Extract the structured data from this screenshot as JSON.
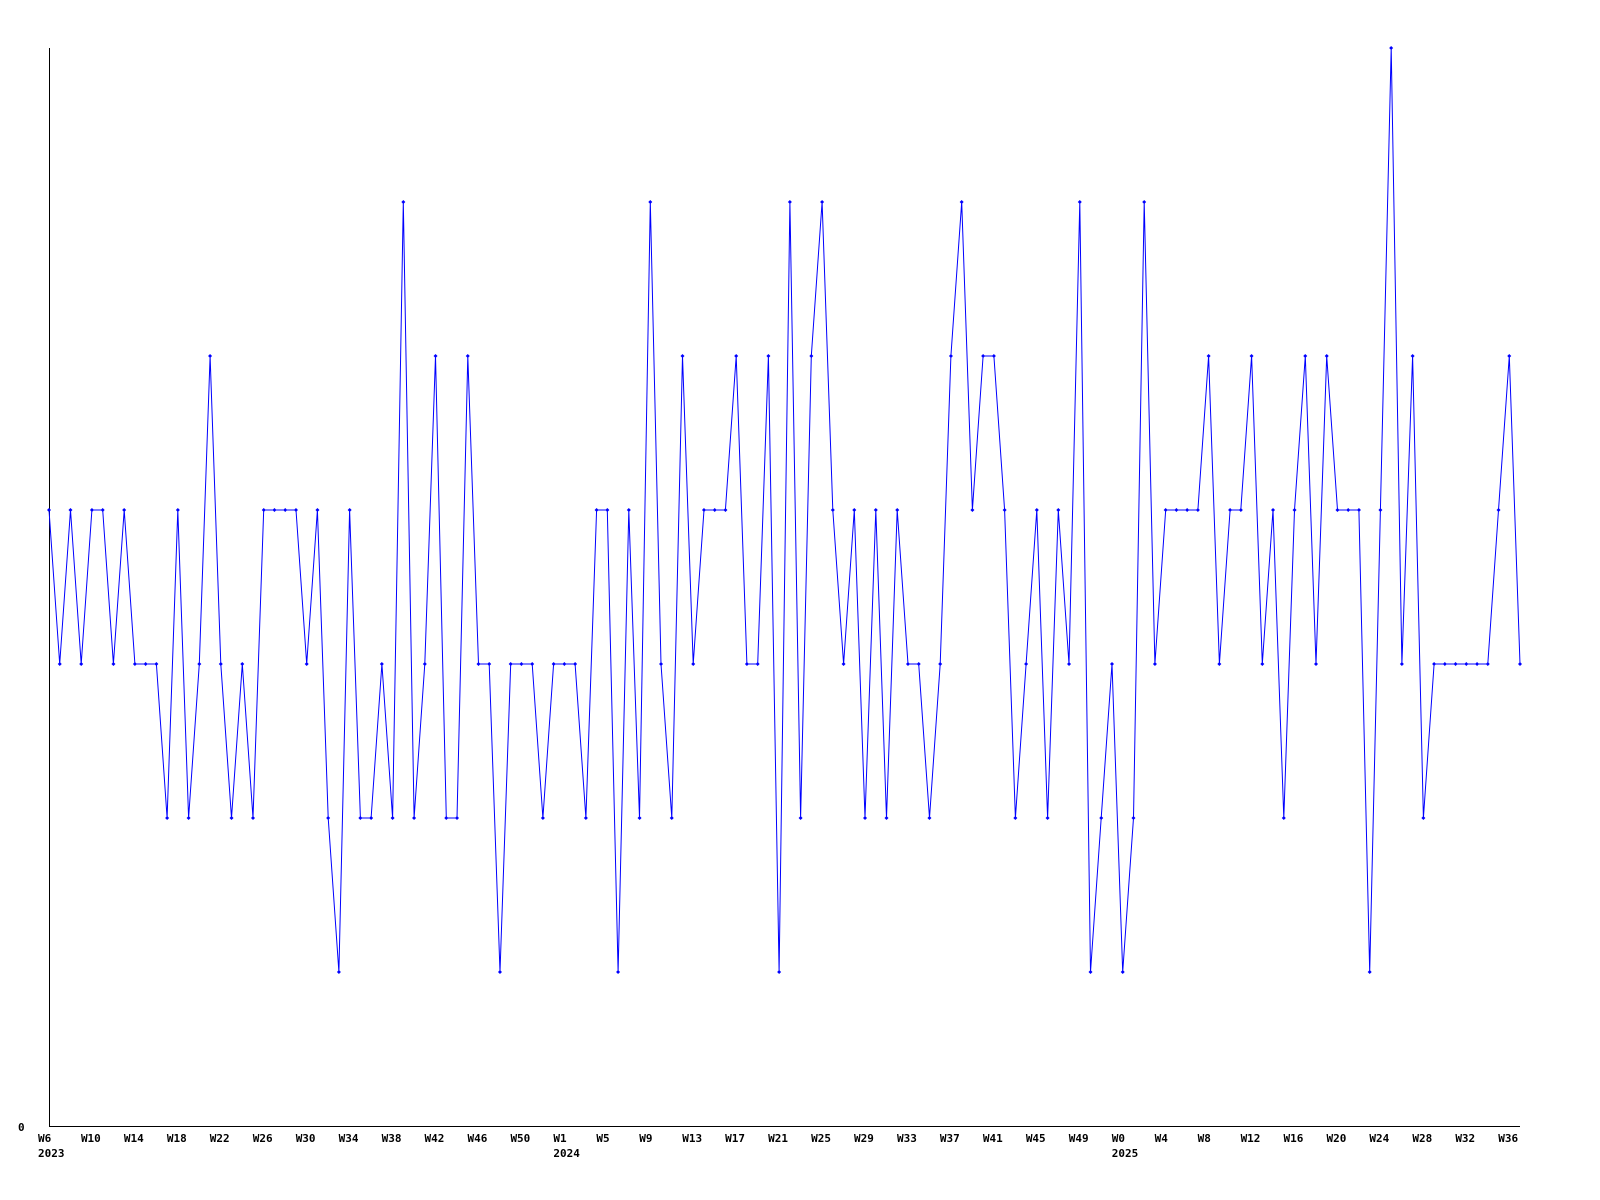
{
  "chart_data": {
    "type": "line",
    "title": "",
    "xlabel": "",
    "ylabel": "",
    "ylim": [
      0,
      7
    ],
    "y_tick_labels": [
      "0"
    ],
    "grid": false,
    "line_color": "#0000ff",
    "axis_color": "#000000",
    "x_tick_labels": [
      {
        "label": "W6",
        "index": 0
      },
      {
        "label": "W10",
        "index": 4
      },
      {
        "label": "W14",
        "index": 8
      },
      {
        "label": "W18",
        "index": 12
      },
      {
        "label": "W22",
        "index": 16
      },
      {
        "label": "W26",
        "index": 20
      },
      {
        "label": "W30",
        "index": 24
      },
      {
        "label": "W34",
        "index": 28
      },
      {
        "label": "W38",
        "index": 32
      },
      {
        "label": "W42",
        "index": 36
      },
      {
        "label": "W46",
        "index": 40
      },
      {
        "label": "W50",
        "index": 44
      },
      {
        "label": "W1",
        "index": 48
      },
      {
        "label": "W5",
        "index": 52
      },
      {
        "label": "W9",
        "index": 56
      },
      {
        "label": "W13",
        "index": 60
      },
      {
        "label": "W17",
        "index": 64
      },
      {
        "label": "W21",
        "index": 68
      },
      {
        "label": "W25",
        "index": 72
      },
      {
        "label": "W29",
        "index": 76
      },
      {
        "label": "W33",
        "index": 80
      },
      {
        "label": "W37",
        "index": 84
      },
      {
        "label": "W41",
        "index": 88
      },
      {
        "label": "W45",
        "index": 92
      },
      {
        "label": "W49",
        "index": 96
      },
      {
        "label": "W0",
        "index": 100
      },
      {
        "label": "W4",
        "index": 104
      },
      {
        "label": "W8",
        "index": 108
      },
      {
        "label": "W12",
        "index": 112
      },
      {
        "label": "W16",
        "index": 116
      },
      {
        "label": "W20",
        "index": 120
      },
      {
        "label": "W24",
        "index": 124
      },
      {
        "label": "W28",
        "index": 128
      },
      {
        "label": "W32",
        "index": 132
      },
      {
        "label": "W36",
        "index": 136
      }
    ],
    "year_labels": [
      {
        "label": "2023",
        "index": 0
      },
      {
        "label": "2024",
        "index": 48
      },
      {
        "label": "2025",
        "index": 100
      }
    ],
    "values": [
      4,
      3,
      4,
      3,
      4,
      4,
      3,
      4,
      3,
      3,
      3,
      2,
      4,
      2,
      3,
      5,
      3,
      2,
      3,
      2,
      4,
      4,
      4,
      4,
      3,
      4,
      2,
      1,
      4,
      2,
      2,
      3,
      2,
      6,
      2,
      3,
      5,
      2,
      2,
      5,
      3,
      3,
      1,
      3,
      3,
      3,
      2,
      3,
      3,
      3,
      2,
      4,
      4,
      1,
      4,
      2,
      6,
      3,
      2,
      5,
      3,
      4,
      4,
      4,
      5,
      3,
      3,
      5,
      1,
      6,
      2,
      5,
      6,
      4,
      3,
      4,
      2,
      4,
      2,
      4,
      3,
      3,
      2,
      3,
      5,
      6,
      4,
      5,
      5,
      4,
      2,
      3,
      4,
      2,
      4,
      3,
      6,
      1,
      2,
      3,
      1,
      2,
      6,
      3,
      4,
      4,
      4,
      4,
      5,
      3,
      4,
      4,
      5,
      3,
      4,
      2,
      4,
      5,
      3,
      5,
      4,
      4,
      4,
      1,
      4,
      7,
      3,
      5,
      2,
      3,
      3,
      3,
      3,
      3,
      3,
      4,
      5,
      3
    ]
  }
}
